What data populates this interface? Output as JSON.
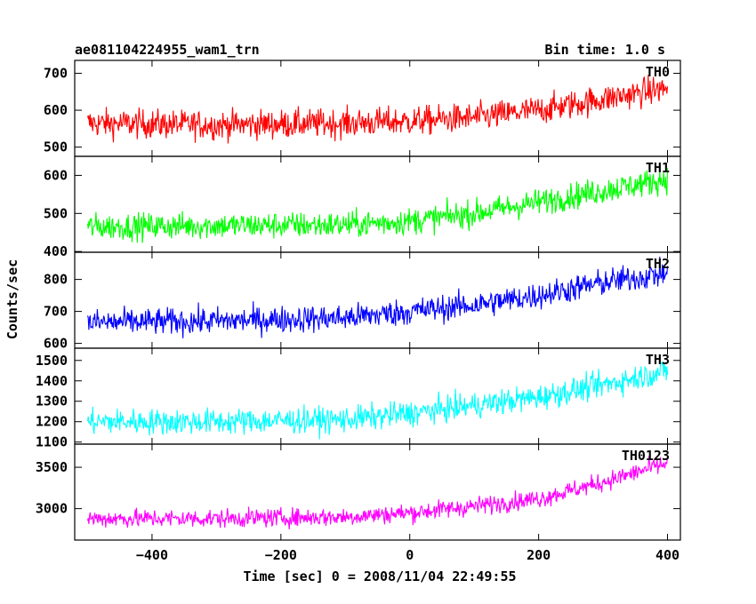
{
  "header": {
    "left_title": "ae081104224955_wam1_trn",
    "right_title": "Bin time: 1.0 s"
  },
  "chart_data": {
    "type": "line",
    "x_axis": {
      "label": "Time [sec] 0 = 2008/11/04 22:49:55",
      "range": [
        -520,
        420
      ],
      "ticks": [
        -400,
        -200,
        0,
        200,
        400
      ],
      "tick_labels": [
        "−400",
        "−200",
        "0",
        "200",
        "400"
      ]
    },
    "y_label": "Counts/sec",
    "grid": false,
    "panels": [
      {
        "name": "TH0",
        "color": "#ff0000",
        "ylim": [
          475,
          735
        ],
        "ticks": [
          500,
          600,
          700
        ],
        "trend": [
          [
            -500,
            565
          ],
          [
            -300,
            560
          ],
          [
            -100,
            565
          ],
          [
            0,
            570
          ],
          [
            100,
            580
          ],
          [
            200,
            600
          ],
          [
            300,
            630
          ],
          [
            400,
            660
          ]
        ],
        "noise": 28
      },
      {
        "name": "TH1",
        "color": "#00ff00",
        "ylim": [
          398,
          650
        ],
        "ticks": [
          400,
          500,
          600
        ],
        "trend": [
          [
            -500,
            465
          ],
          [
            -300,
            468
          ],
          [
            -100,
            470
          ],
          [
            0,
            480
          ],
          [
            100,
            500
          ],
          [
            200,
            530
          ],
          [
            300,
            560
          ],
          [
            400,
            590
          ]
        ],
        "noise": 25
      },
      {
        "name": "TH2",
        "color": "#0000ff",
        "ylim": [
          585,
          885
        ],
        "ticks": [
          600,
          700,
          800
        ],
        "trend": [
          [
            -500,
            665
          ],
          [
            -300,
            670
          ],
          [
            -100,
            680
          ],
          [
            0,
            700
          ],
          [
            100,
            720
          ],
          [
            200,
            750
          ],
          [
            300,
            790
          ],
          [
            400,
            820
          ]
        ],
        "noise": 30
      },
      {
        "name": "TH3",
        "color": "#00ffff",
        "ylim": [
          1090,
          1560
        ],
        "ticks": [
          1100,
          1200,
          1300,
          1400,
          1500
        ],
        "trend": [
          [
            -500,
            1200
          ],
          [
            -300,
            1200
          ],
          [
            -100,
            1210
          ],
          [
            0,
            1240
          ],
          [
            100,
            1280
          ],
          [
            200,
            1320
          ],
          [
            300,
            1380
          ],
          [
            400,
            1450
          ]
        ],
        "noise": 45
      },
      {
        "name": "TH0123",
        "color": "#ff00ff",
        "ylim": [
          2620,
          3780
        ],
        "ticks": [
          3000,
          3500
        ],
        "trend": [
          [
            -500,
            2880
          ],
          [
            -300,
            2880
          ],
          [
            -100,
            2900
          ],
          [
            0,
            2950
          ],
          [
            100,
            3030
          ],
          [
            200,
            3120
          ],
          [
            300,
            3320
          ],
          [
            400,
            3550
          ]
        ],
        "noise": 80
      }
    ]
  }
}
